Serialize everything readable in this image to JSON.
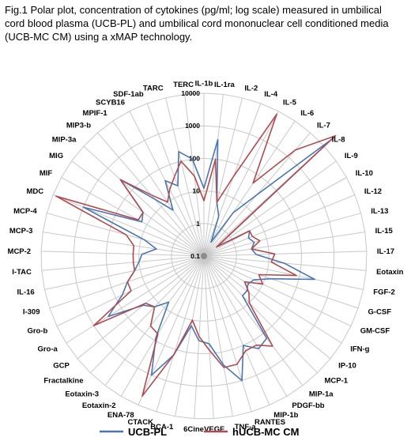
{
  "caption": "Fig.1 Polar plot, concentration of  cytokines (pg/ml; log scale) measured in umbilical cord blood plasma (UCB-PL)  and umbilical cord mononuclear cell conditioned media (UCB-MC CM) using a xMAP technology.",
  "chart_data": {
    "type": "radar",
    "scale": "log",
    "rlim": [
      0.1,
      10000
    ],
    "tick_labels": [
      "0.1",
      "1",
      "10",
      "100",
      "1000",
      "10000"
    ],
    "grid": true,
    "legend_position": "bottom",
    "categories": [
      "IL-1b",
      "IL-1ra",
      "IL-2",
      "IL-4",
      "IL-5",
      "IL-6",
      "IL-7",
      "IL-8",
      "IL-9",
      "IL-10",
      "IL-12",
      "IL-13",
      "IL-15",
      "IL-17",
      "Eotaxin",
      "FGF-2",
      "G-CSF",
      "GM-CSF",
      "IFN-g",
      "IP-10",
      "MCP-1",
      "MIP-1a",
      "PDGF-bb",
      "MIP-1b",
      "RANTES",
      "TNF-a",
      "VEGF",
      "6Cine",
      "BCA-1",
      "CTACK",
      "ENA-78",
      "Eotaxin-2",
      "Eotaxin-3",
      "Fractalkine",
      "GCP",
      "Gro-a",
      "Gro-b",
      "I-309",
      "IL-16",
      "I-TAC",
      "MCP-2",
      "MCP-3",
      "MCP-4",
      "MDC",
      "MIF",
      "MIG",
      "MIP-3a",
      "MIP3-b",
      "MPIF-1",
      "SCYB16",
      "SDF-1ab",
      "TARC",
      "TERC"
    ],
    "series": [
      {
        "name": "UCB-PL",
        "color": "#4a76b0",
        "values": [
          12,
          400,
          5,
          2,
          0.3,
          4,
          30,
          20000,
          0.3,
          4,
          3,
          4,
          3,
          4,
          30,
          300,
          15,
          5,
          4,
          5,
          5,
          150,
          200,
          100,
          1000,
          250,
          50,
          40,
          15,
          150,
          1000,
          80,
          6,
          15,
          25,
          300,
          60,
          30,
          15,
          10,
          8,
          3,
          8,
          1000,
          15,
          20,
          300,
          20,
          5,
          40,
          20,
          200,
          100
        ]
      },
      {
        "name": "hUCB-MC CM",
        "color": "#b04a4e",
        "values": [
          5,
          100,
          5,
          40,
          8000,
          50,
          2000,
          30000,
          0.3,
          4,
          4,
          6,
          3,
          15,
          12,
          80,
          6,
          10,
          3,
          6,
          10,
          300,
          150,
          150,
          300,
          300,
          80,
          30,
          10,
          150,
          5000,
          60,
          50,
          15,
          20,
          1000,
          30,
          30,
          15,
          15,
          15,
          15,
          30,
          8000,
          20,
          20,
          300,
          30,
          10,
          20,
          40,
          100,
          30
        ]
      }
    ]
  },
  "legend": {
    "items": [
      {
        "label": "UCB-PL",
        "color": "#4a76b0"
      },
      {
        "label": "hUCB-MC CM",
        "color": "#b04a4e"
      }
    ]
  }
}
